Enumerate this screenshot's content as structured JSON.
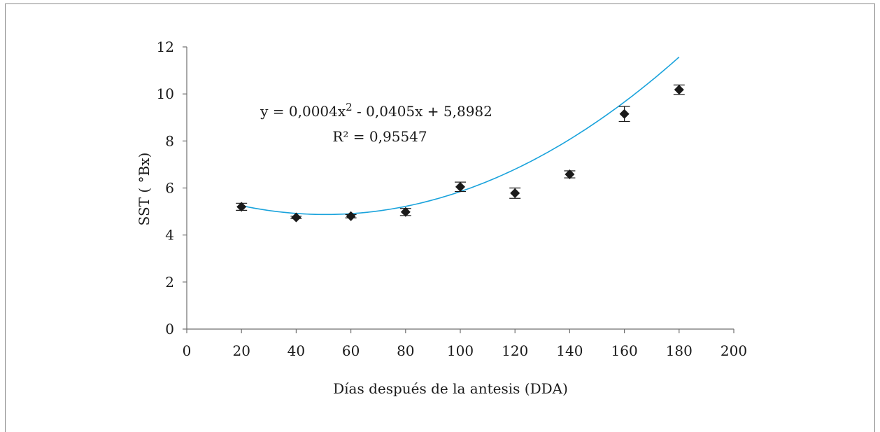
{
  "chart_data": {
    "type": "scatter",
    "xlabel": "Días después de la antesis  (DDA)",
    "ylabel": "SST ( °Bx)",
    "xlim": [
      0,
      200
    ],
    "ylim": [
      0,
      12
    ],
    "x_ticks": [
      0,
      20,
      40,
      60,
      80,
      100,
      120,
      140,
      160,
      180,
      200
    ],
    "y_ticks": [
      0,
      2,
      4,
      6,
      8,
      10,
      12
    ],
    "grid": false,
    "series": [
      {
        "x": [
          20,
          40,
          60,
          80,
          100,
          120,
          140,
          160,
          180
        ],
        "y": [
          5.2,
          4.75,
          4.8,
          4.98,
          6.05,
          5.78,
          6.58,
          9.15,
          10.18
        ],
        "error": [
          0.15,
          0.05,
          0.07,
          0.15,
          0.2,
          0.22,
          0.15,
          0.32,
          0.2
        ],
        "marker": "diamond",
        "color": "#1a1a1a"
      }
    ],
    "trendline": {
      "type": "polynomial",
      "coefficients": [
        0.0004,
        -0.0405,
        5.8982
      ],
      "x_range": [
        20,
        180
      ],
      "color": "#1aa3dc",
      "equation_text": "y = 0,0004x",
      "equation_exp": "2",
      "equation_rest": " - 0,0405x + 5,8982",
      "r2_text": "R² = 0,95547"
    }
  }
}
